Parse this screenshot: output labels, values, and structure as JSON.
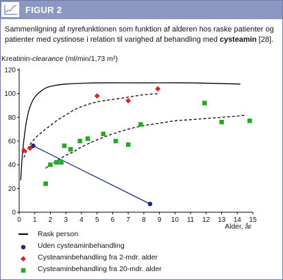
{
  "header": {
    "label": "FIGUR 2",
    "icon": "line-chart-icon",
    "bar_color": "#8d98c2"
  },
  "caption": {
    "text_part1": "Sammenligning af nyrefunktionen som funktion af alderen hos raske patienter og patienter med cystinose i relation til varighed af behandling med ",
    "text_bold": "cysteamin",
    "text_part2": " [28]."
  },
  "chart_data": {
    "type": "scatter",
    "ylabel_prefix": "Kreatinin-",
    "ylabel_italic": "clearance",
    "ylabel_suffix": " (ml/min/1,73 m²)",
    "xlabel": "Alder, år",
    "xlim": [
      0,
      15
    ],
    "ylim": [
      0,
      120
    ],
    "xticks": [
      0,
      1,
      2,
      3,
      4,
      5,
      6,
      7,
      8,
      9,
      10,
      11,
      12,
      13,
      14,
      15
    ],
    "yticks": [
      0,
      20,
      40,
      60,
      80,
      100,
      120
    ],
    "series": [
      {
        "name": "Rask person",
        "kind": "line",
        "style": "solid",
        "color": "#000000",
        "points": [
          [
            0.1,
            27
          ],
          [
            0.2,
            48
          ],
          [
            0.35,
            66
          ],
          [
            0.5,
            79
          ],
          [
            0.7,
            89
          ],
          [
            1.0,
            97
          ],
          [
            1.5,
            103
          ],
          [
            2.0,
            106
          ],
          [
            3.0,
            108
          ],
          [
            5.0,
            109
          ],
          [
            8.0,
            109
          ],
          [
            11.0,
            109
          ],
          [
            14.2,
            108
          ]
        ]
      },
      {
        "name": "",
        "kind": "line",
        "style": "dashed",
        "color": "#000000",
        "points": [
          [
            0.3,
            46
          ],
          [
            0.6,
            55
          ],
          [
            1.0,
            62
          ],
          [
            1.5,
            68
          ],
          [
            2.0,
            73
          ],
          [
            2.5,
            78
          ],
          [
            3.0,
            82
          ],
          [
            3.5,
            86
          ],
          [
            4.0,
            89
          ],
          [
            5.0,
            93
          ],
          [
            6.0,
            95
          ],
          [
            7.0,
            97
          ],
          [
            8.0,
            99
          ],
          [
            9.0,
            100
          ]
        ]
      },
      {
        "name": "",
        "kind": "line",
        "style": "dashed",
        "color": "#000000",
        "points": [
          [
            1.7,
            37
          ],
          [
            2.0,
            40
          ],
          [
            2.5,
            44
          ],
          [
            3.0,
            48
          ],
          [
            3.5,
            51
          ],
          [
            4.0,
            55
          ],
          [
            5.0,
            61
          ],
          [
            6.0,
            66
          ],
          [
            7.0,
            70
          ],
          [
            8.0,
            73
          ],
          [
            9.0,
            75
          ],
          [
            10.0,
            77
          ],
          [
            11.0,
            78
          ],
          [
            12.0,
            79
          ],
          [
            13.0,
            80
          ],
          [
            14.0,
            81
          ],
          [
            14.6,
            82
          ]
        ]
      },
      {
        "name": "Uden cysteaminbehandling",
        "kind": "points",
        "marker": "circle",
        "color": "#1a2a8c",
        "connected": true,
        "points": [
          [
            0.9,
            56
          ],
          [
            8.4,
            7
          ]
        ]
      },
      {
        "name": "Cysteaminbehandling fra 2-mdr. alder",
        "kind": "points",
        "marker": "diamond",
        "color": "#e02424",
        "points": [
          [
            0.3,
            52
          ],
          [
            0.7,
            54
          ],
          [
            5.0,
            98
          ],
          [
            7.0,
            94
          ],
          [
            8.9,
            104
          ]
        ]
      },
      {
        "name": "Cysteaminbehandling fra 20-mdr. alder",
        "kind": "points",
        "marker": "square",
        "color": "#26a826",
        "points": [
          [
            1.7,
            24
          ],
          [
            2.0,
            40
          ],
          [
            2.4,
            42
          ],
          [
            2.7,
            42
          ],
          [
            2.9,
            56
          ],
          [
            3.3,
            53
          ],
          [
            3.9,
            60
          ],
          [
            4.4,
            62
          ],
          [
            5.4,
            66
          ],
          [
            6.2,
            60
          ],
          [
            7.0,
            57
          ],
          [
            7.8,
            74
          ],
          [
            11.9,
            92
          ],
          [
            13.0,
            76
          ],
          [
            14.8,
            77
          ]
        ]
      }
    ],
    "legend": [
      {
        "label": "Rask person",
        "symbol": "line",
        "color": "#000000"
      },
      {
        "label": "Uden cysteaminbehandling",
        "symbol": "circle",
        "color": "#1a2a8c"
      },
      {
        "label": "Cysteaminbehandling fra 2-mdr. alder",
        "symbol": "diamond",
        "color": "#e02424"
      },
      {
        "label": "Cysteaminbehandling fra 20-mdr. alder",
        "symbol": "square",
        "color": "#26a826"
      }
    ],
    "grid": false,
    "legend_position": "bottom-left"
  }
}
